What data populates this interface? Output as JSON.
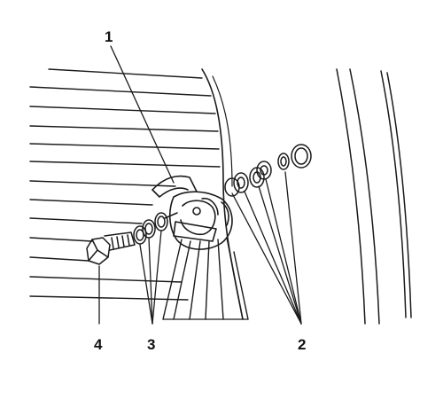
{
  "figure": {
    "description_hidden": false,
    "callouts": {
      "one": "1",
      "two": "2",
      "three": "3",
      "four": "4"
    },
    "ink_color": "#1a1a1a",
    "background_color": "#ffffff"
  }
}
